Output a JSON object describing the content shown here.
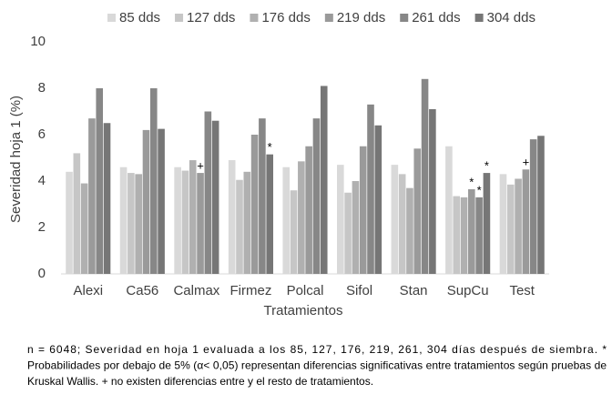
{
  "chart_data": {
    "type": "bar",
    "y_label": "Severidad hoja 1 (%)",
    "x_label": "Tratamientos",
    "categories": [
      "Alexi",
      "Ca56",
      "Calmax",
      "Firmez",
      "Polcal",
      "Sifol",
      "Stan",
      "SupCu",
      "Test"
    ],
    "series": [
      {
        "name": "85 dds",
        "color": "#d9d9d9",
        "values": [
          4.4,
          4.6,
          4.6,
          4.9,
          4.6,
          4.7,
          4.7,
          5.5,
          4.3
        ],
        "markers": [
          null,
          null,
          null,
          null,
          null,
          null,
          null,
          null,
          null
        ]
      },
      {
        "name": "127 dds",
        "color": "#c6c6c6",
        "values": [
          5.2,
          4.35,
          4.45,
          4.05,
          3.6,
          3.5,
          4.3,
          3.35,
          3.85
        ],
        "markers": [
          null,
          null,
          null,
          null,
          null,
          null,
          null,
          null,
          null
        ]
      },
      {
        "name": "176 dds",
        "color": "#b0b0b0",
        "values": [
          3.9,
          4.3,
          4.9,
          4.4,
          4.85,
          4.0,
          3.7,
          3.3,
          4.1
        ],
        "markers": [
          null,
          null,
          null,
          null,
          null,
          null,
          null,
          null,
          null
        ]
      },
      {
        "name": "219 dds",
        "color": "#9a9a9a",
        "values": [
          6.7,
          6.2,
          4.35,
          6.0,
          5.5,
          5.5,
          5.4,
          3.65,
          4.5
        ],
        "markers": [
          null,
          null,
          "+",
          null,
          null,
          null,
          null,
          "*",
          "+"
        ]
      },
      {
        "name": "261 dds",
        "color": "#878787",
        "values": [
          8.0,
          8.0,
          7.0,
          6.7,
          6.7,
          7.3,
          8.4,
          3.3,
          5.8
        ],
        "markers": [
          null,
          null,
          null,
          null,
          null,
          null,
          null,
          "*",
          null
        ]
      },
      {
        "name": "304 dds",
        "color": "#767676",
        "values": [
          6.5,
          6.25,
          6.6,
          5.15,
          8.1,
          6.4,
          7.1,
          4.35,
          5.95
        ],
        "markers": [
          null,
          null,
          null,
          "*",
          null,
          null,
          null,
          "*",
          null
        ]
      }
    ],
    "ylim": [
      0,
      10
    ],
    "yticks": [
      0,
      2,
      4,
      6,
      8,
      10
    ],
    "grid": false,
    "legend": "top",
    "note": [
      "n = 6048; Severidad en hoja 1 evaluada a los 85, 127, 176, 219, 261, 304 días después de siembra. *",
      "Probabilidades por debajo de 5% (α< 0,05) representan diferencias significativas entre tratamientos según pruebas de",
      "Kruskal Wallis. + no existen diferencias entre y el resto de tratamientos."
    ]
  }
}
